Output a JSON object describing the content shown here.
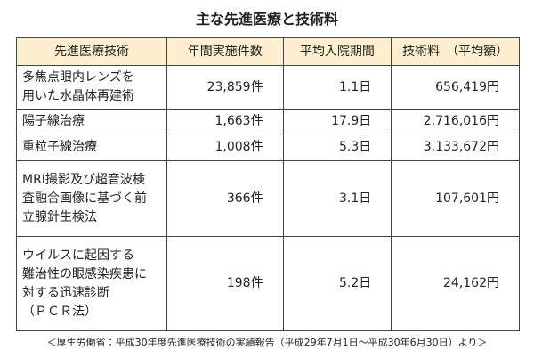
{
  "title": "主な先進医療と技術料",
  "table": {
    "header": [
      "先進医療技術",
      "年間実施件数",
      "平均入院期間",
      "技術料　（平均額）"
    ],
    "rows": [
      [
        [
          "多焦点眼内レンズを",
          "用いた水晶体再建術"
        ],
        "23,859件",
        "1.1日",
        "656,419円"
      ],
      [
        [
          "陽子線治療"
        ],
        "1,663件",
        "17.9日",
        "2,716,016円"
      ],
      [
        [
          "重粒子線治療"
        ],
        "1,008件",
        "5.3日",
        "3,133,672円"
      ],
      [
        [
          "MRI撮影及び超音波検",
          "査融合画像に基づく前",
          "立腺針生検法"
        ],
        "366件",
        "3.1日",
        "107,601円"
      ],
      [
        [
          "ウイルスに起因する",
          "難治性の眼感染疾患に",
          "対する迅速診断",
          "（ＰＣＲ法）"
        ],
        "198件",
        "5.2日",
        "24,162円"
      ]
    ]
  },
  "footer": "＜厚生労働省：平成30年度先進医療技術の実績報告（平成29年7月1日～平成30年6月30日）より＞"
}
